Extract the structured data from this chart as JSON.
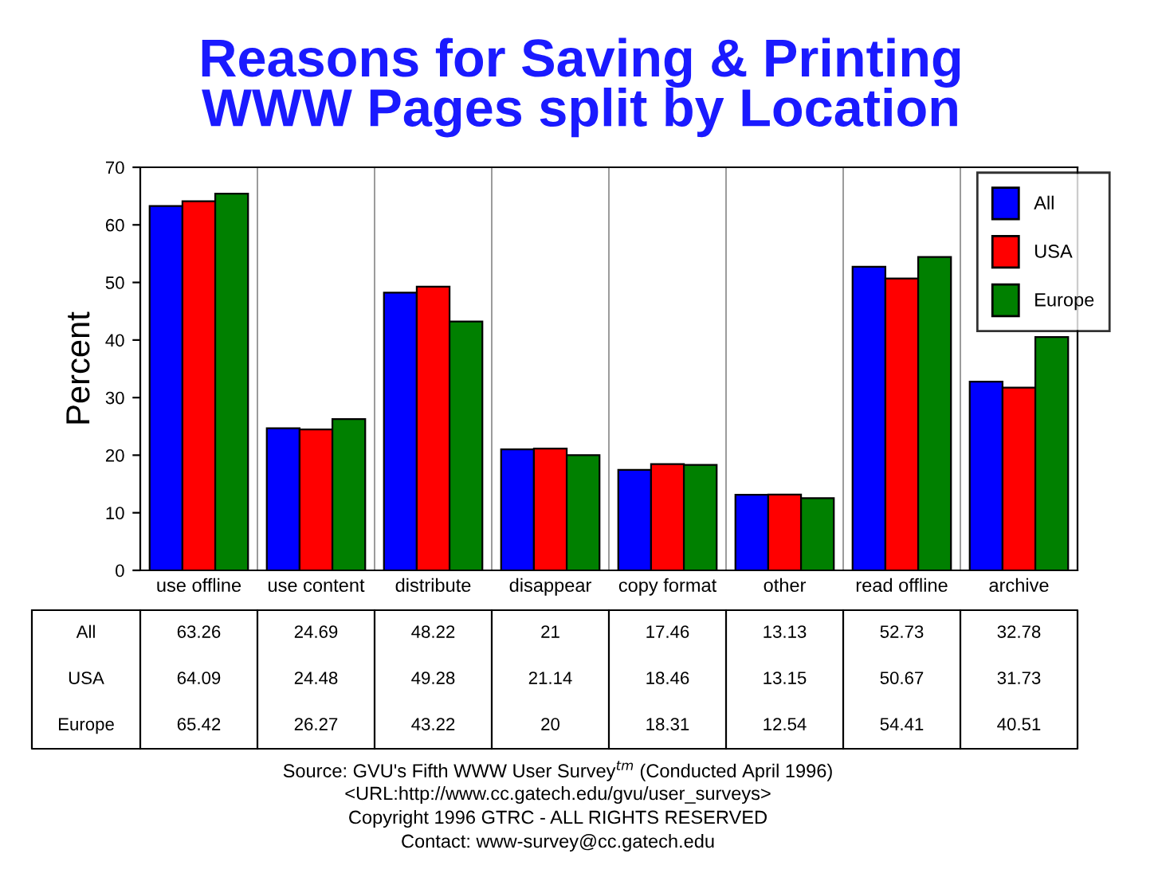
{
  "chart_data": {
    "type": "bar",
    "title": "Reasons for Saving & Printing\nWWW Pages split by Location",
    "ylabel": "Percent",
    "categories": [
      "use offline",
      "use content",
      "distribute",
      "disappear",
      "copy format",
      "other",
      "read offline",
      "archive"
    ],
    "series": [
      {
        "name": "All",
        "color": "#0000ff",
        "values": [
          63.26,
          24.69,
          48.22,
          21,
          17.46,
          13.13,
          52.73,
          32.78
        ]
      },
      {
        "name": "USA",
        "color": "#ff0000",
        "values": [
          64.09,
          24.48,
          49.28,
          21.14,
          18.46,
          13.15,
          50.67,
          31.73
        ]
      },
      {
        "name": "Europe",
        "color": "#008000",
        "values": [
          65.42,
          26.27,
          43.22,
          20,
          18.31,
          12.54,
          54.41,
          40.51
        ]
      }
    ],
    "ylim": [
      0,
      70
    ],
    "yticks": [
      0,
      10,
      20,
      30,
      40,
      50,
      60,
      70
    ],
    "grid": "x",
    "legend": "top right",
    "data_labels": true,
    "annotations": [
      "Source: GVU's Fifth WWW User Survey$^{tm}$ (Conducted April 1996)",
      "<URL:http://www.cc.gatech.edu/gvu/user_surveys>",
      "Copyright 1996 GTRC - ALL RIGHTS RESERVED",
      "Contact: www-survey@cc.gatech.edu"
    ]
  }
}
